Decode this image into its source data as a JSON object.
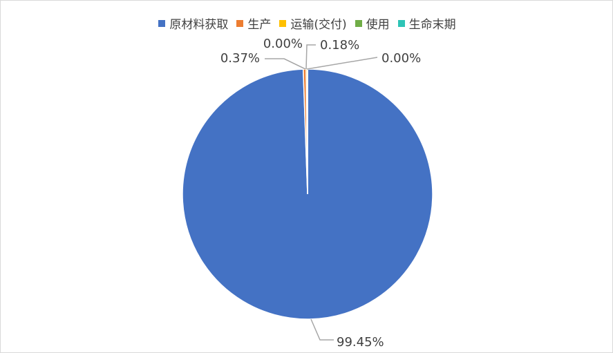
{
  "chart_data": {
    "type": "pie",
    "categories": [
      "原材料获取",
      "生产",
      "运输(交付)",
      "使用",
      "生命末期"
    ],
    "values": [
      99.45,
      0.37,
      0.18,
      0.0,
      0.0
    ],
    "data_labels": [
      "99.45%",
      "0.37%",
      "0.18%",
      "0.00%",
      "0.00%"
    ],
    "colors": [
      "#4472C4",
      "#ED7D31",
      "#FFC000",
      "#70AD47",
      "#2EC4B6"
    ],
    "legend_position": "top",
    "title": ""
  }
}
